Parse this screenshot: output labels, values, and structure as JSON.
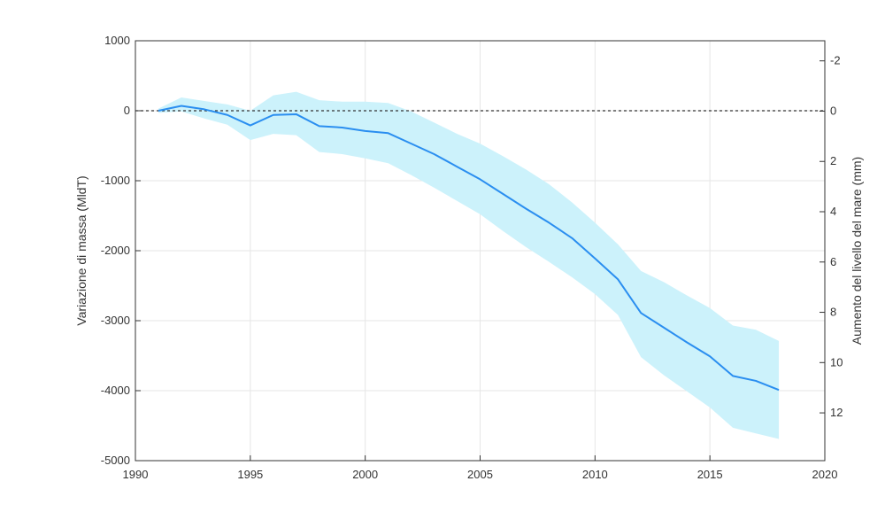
{
  "chart_data": {
    "type": "line",
    "title": "",
    "xlabel": "",
    "ylabel": "Variazione di massa (MldT)",
    "ylabel_right": "Aumento del livello del mare (mm)",
    "xlim": [
      1990,
      2020
    ],
    "ylim": [
      -5000,
      1000
    ],
    "ylim_right": [
      13.9,
      -2.8
    ],
    "x_ticks": [
      "1990",
      "1995",
      "2000",
      "2005",
      "2010",
      "2015",
      "2020"
    ],
    "y_ticks": [
      "1000",
      "0",
      "-1000",
      "-2000",
      "-3000",
      "-4000",
      "-5000"
    ],
    "y_right_ticks": [
      "-2",
      "0",
      "2",
      "4",
      "6",
      "8",
      "10",
      "12"
    ],
    "grid": true,
    "zero_line": 0,
    "colors": {
      "line": "#2a8ef0",
      "band": "#ccf2fb",
      "zero": "#333333",
      "grid": "#e6e6e6",
      "axis": "#333333"
    },
    "series": [
      {
        "x": [
          1991,
          1992,
          1993,
          1994,
          1995,
          1996,
          1997,
          1998,
          1999,
          2000,
          2001,
          2002,
          2003,
          2004,
          2005,
          2006,
          2007,
          2008,
          2009,
          2010,
          2011,
          2012,
          2013,
          2014,
          2015,
          2016,
          2017,
          2018
        ],
        "values": [
          0,
          70,
          20,
          -60,
          -210,
          -60,
          -50,
          -220,
          -240,
          -290,
          -320,
          -470,
          -620,
          -800,
          -980,
          -1190,
          -1400,
          -1600,
          -1820,
          -2110,
          -2410,
          -2890,
          -3100,
          -3310,
          -3510,
          -3790,
          -3860,
          -3990
        ],
        "upper": [
          30,
          190,
          140,
          90,
          0,
          220,
          270,
          150,
          130,
          130,
          110,
          -10,
          -170,
          -330,
          -470,
          -650,
          -840,
          -1050,
          -1310,
          -1600,
          -1910,
          -2290,
          -2450,
          -2640,
          -2820,
          -3070,
          -3130,
          -3290
        ],
        "lower": [
          -30,
          -10,
          -110,
          -200,
          -420,
          -330,
          -350,
          -590,
          -620,
          -680,
          -750,
          -920,
          -1100,
          -1290,
          -1480,
          -1720,
          -1950,
          -2160,
          -2380,
          -2620,
          -2920,
          -3520,
          -3780,
          -4010,
          -4240,
          -4530,
          -4610,
          -4690
        ]
      }
    ]
  }
}
